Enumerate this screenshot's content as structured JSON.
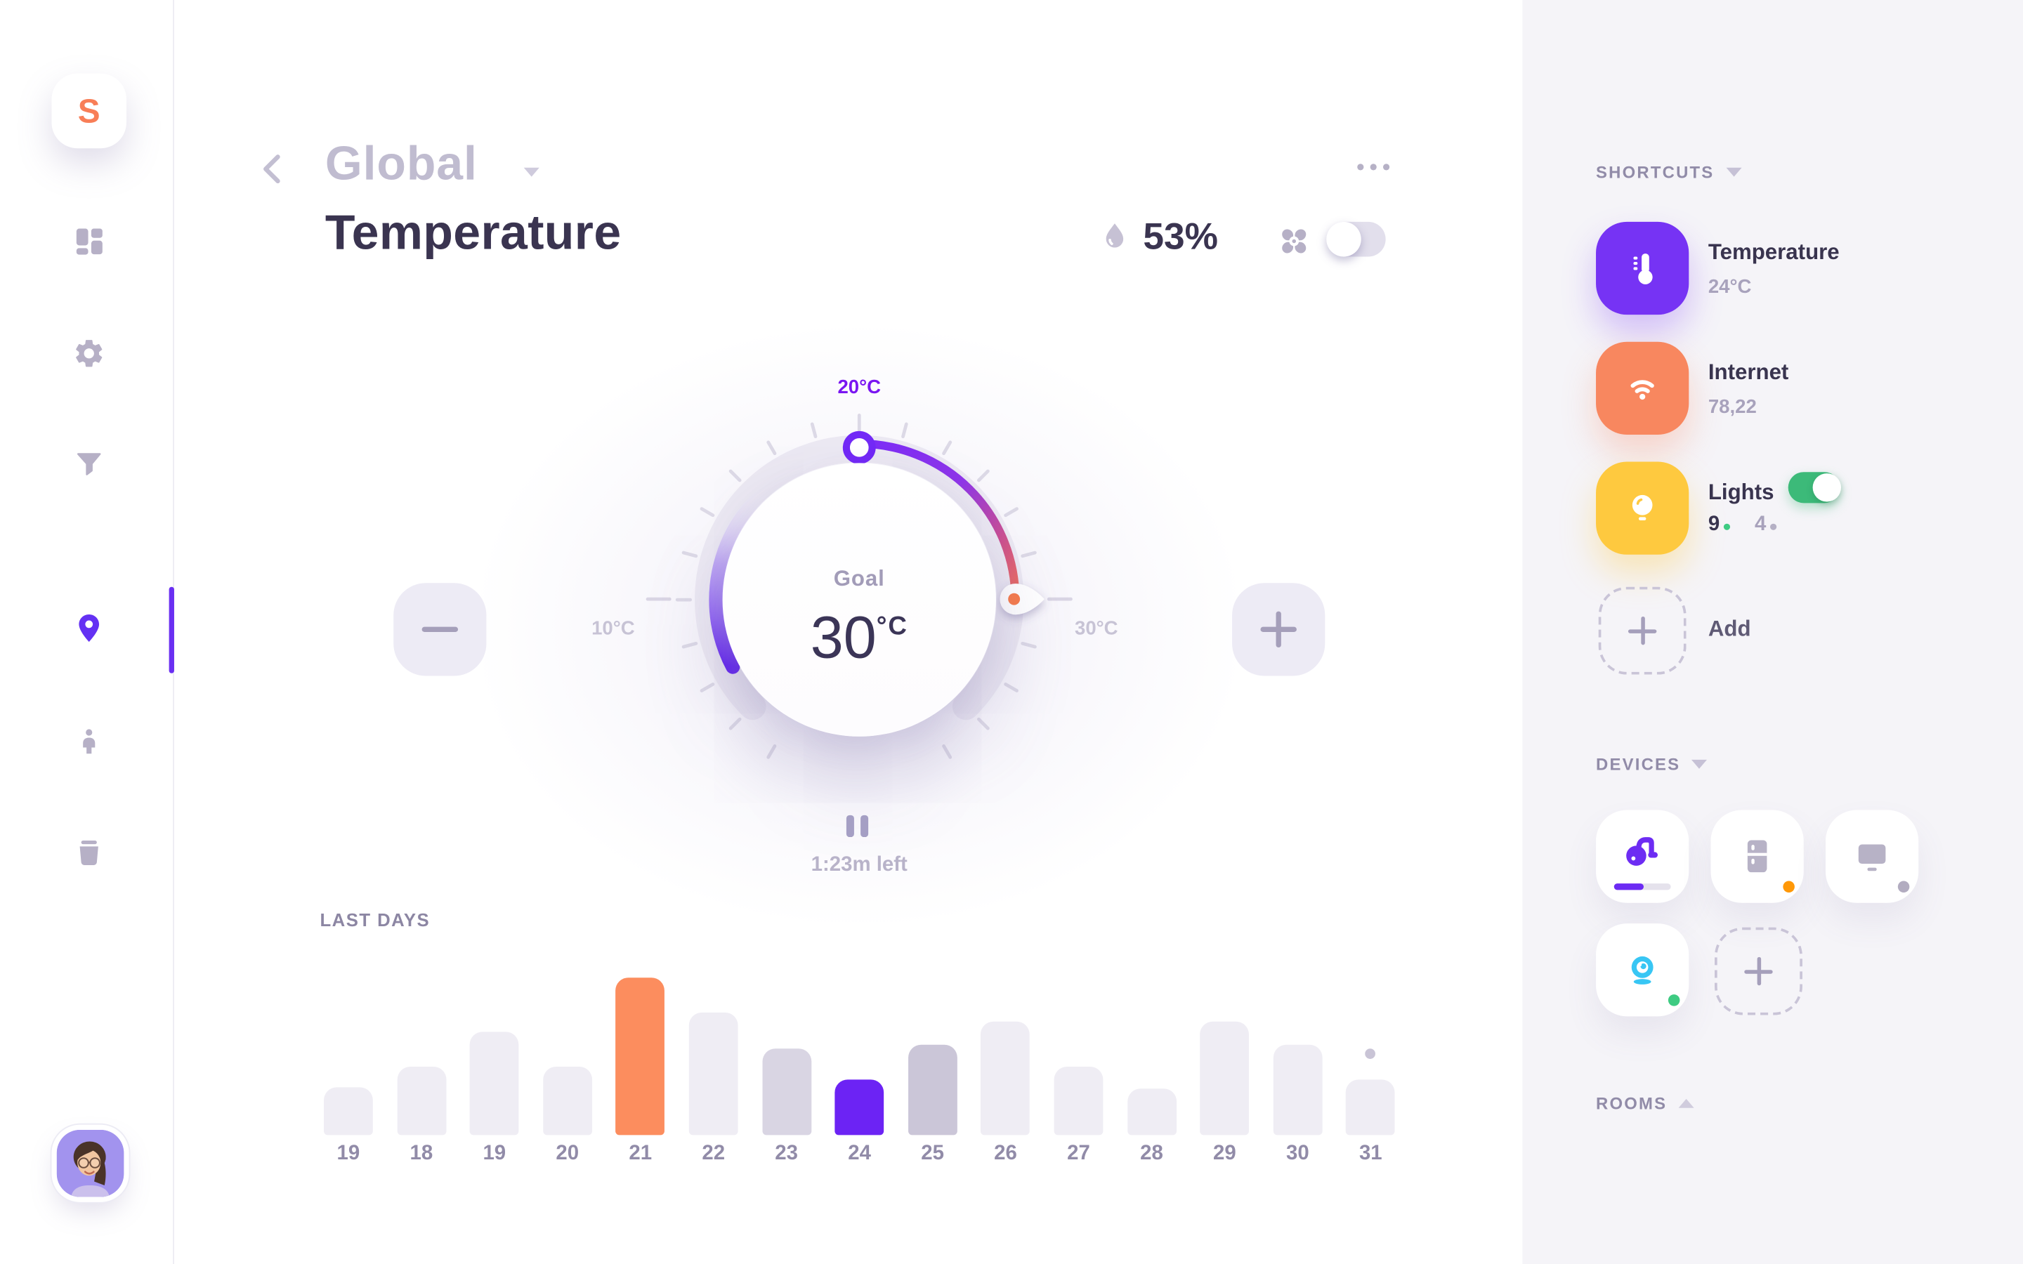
{
  "app": {
    "logo": "S"
  },
  "sidebar": {
    "items": [
      {
        "name": "dashboard"
      },
      {
        "name": "settings"
      },
      {
        "name": "filter"
      },
      {
        "name": "locations",
        "active": true
      },
      {
        "name": "profile"
      },
      {
        "name": "storage"
      }
    ]
  },
  "header": {
    "category": "Global",
    "title": "Temperature",
    "humidity": "53%",
    "fan_toggle_on": false,
    "menu": "..."
  },
  "dial": {
    "scale_top_label": "20°C",
    "scale_min_label": "10°C",
    "scale_max_label": "30°C",
    "goal_label": "Goal",
    "goal_value": "30",
    "goal_unit": "°C",
    "remaining": "1:23m left",
    "accent_purple": "#7b2cf7",
    "accent_red": "#f0705a"
  },
  "chart_data": {
    "type": "bar",
    "title": "LAST DAYS",
    "categories": [
      "19",
      "18",
      "19",
      "20",
      "21",
      "22",
      "23",
      "24",
      "25",
      "26",
      "27",
      "28",
      "29",
      "30",
      "31"
    ],
    "values": [
      37,
      53,
      80,
      53,
      122,
      95,
      67,
      43,
      70,
      88,
      53,
      36,
      88,
      70,
      43
    ],
    "unit": "relative height (no value axis shown)",
    "colors": [
      "#efedf4",
      "#efedf4",
      "#efedf4",
      "#efedf4",
      "#fc8d5e",
      "#efedf4",
      "#d9d5e3",
      "#6c23f4",
      "#cbc6d8",
      "#efedf4",
      "#efedf4",
      "#efedf4",
      "#efedf4",
      "#efedf4",
      "#efedf4"
    ],
    "dot_above_last": true,
    "xlabel": "",
    "ylabel": "",
    "grid": false,
    "legend": false
  },
  "shortcuts": {
    "heading": "SHORTCUTS",
    "items": [
      {
        "label": "Temperature",
        "value": "24°C",
        "tile_color": "#7633f4",
        "icon": "thermometer"
      },
      {
        "label": "Internet",
        "value": "78,22",
        "tile_color": "#f8875f",
        "icon": "wifi"
      },
      {
        "label": "Lights",
        "toggle_on": true,
        "tile_color": "#fec93f",
        "icon": "bulb",
        "counts": [
          {
            "num": "9",
            "dot": "#3ecb82",
            "num_color": "#39344f"
          },
          {
            "num": "4",
            "dot": "#b5b0c5",
            "num_color": "#a8a2bc"
          }
        ]
      }
    ],
    "add_label": "Add"
  },
  "devices": {
    "heading": "DEVICES",
    "items": [
      {
        "name": "vacuum",
        "progress": 0.52
      },
      {
        "name": "fridge",
        "status_color": "#ff9807"
      },
      {
        "name": "monitor",
        "status_color": "#b2acc0"
      },
      {
        "name": "webcam",
        "status_color": "#3ecb82"
      },
      {
        "name": "add-device"
      }
    ]
  },
  "rooms": {
    "heading": "ROOMS"
  }
}
